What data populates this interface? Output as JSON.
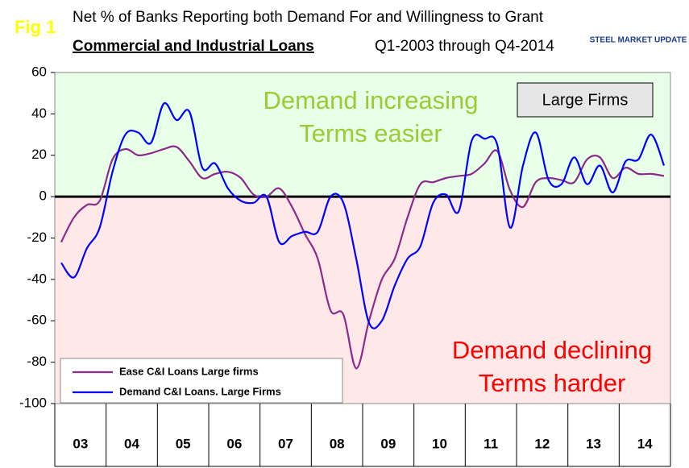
{
  "chart_data": {
    "type": "line",
    "fig_label": "Fig 1",
    "title": "Net % of Banks Reporting both Demand For and Willingness to Grant",
    "subtitle_bold": "Commercial and Industrial Loans",
    "subtitle": "Q1-2003 through Q4-2014",
    "logo": "STEEL MARKET UPDATE",
    "box_label": "Large Firms",
    "annotations_upper": [
      "Demand increasing",
      "Terms easier"
    ],
    "annotations_lower": [
      "Demand declining",
      "Terms harder"
    ],
    "categories": [
      null,
      "03",
      null,
      null,
      null,
      "04",
      null,
      null,
      null,
      "05",
      null,
      null,
      null,
      "06",
      null,
      null,
      null,
      "07",
      null,
      null,
      null,
      "08",
      null,
      null,
      null,
      "09",
      null,
      null,
      null,
      "10",
      null,
      null,
      null,
      "11",
      null,
      null,
      null,
      "12",
      null,
      null,
      null,
      "13",
      null,
      null,
      null,
      "14",
      null,
      null
    ],
    "series": [
      {
        "name": "Ease C&I Loans Large firms",
        "color": "#8b2a8b",
        "values": [
          -22,
          -10,
          -4,
          -2,
          18,
          23,
          20,
          21,
          23,
          24,
          17,
          9,
          11,
          12,
          9,
          1,
          0,
          4,
          -5,
          -18,
          -30,
          -55,
          -57,
          -83,
          -60,
          -40,
          -30,
          -10,
          6,
          7,
          9,
          10,
          11,
          16,
          22,
          3,
          -5,
          7,
          9,
          8,
          7,
          18,
          19,
          9,
          14,
          11,
          11,
          10
        ]
      },
      {
        "name": "Demand C&I Loans. Large Firms",
        "color": "#0000ff",
        "values": [
          -32,
          -39,
          -25,
          -15,
          12,
          30,
          31,
          26,
          45,
          37,
          41,
          14,
          16,
          4,
          -2,
          -3,
          0,
          -22,
          -19,
          -17,
          -17,
          0,
          -3,
          -30,
          -61,
          -60,
          -43,
          -30,
          -24,
          -3,
          1,
          -7,
          27,
          28,
          25,
          -15,
          15,
          31,
          8,
          6,
          19,
          6,
          15,
          2,
          17,
          18,
          30,
          15
        ]
      }
    ],
    "ylim": [
      -100,
      60
    ],
    "yticks": [
      -100,
      -80,
      -60,
      -40,
      -20,
      0,
      20,
      40,
      60
    ],
    "grid": false,
    "upper_color": "#e8ffe8",
    "lower_color": "#ffe8e8",
    "upper_text_color": "#99cc33",
    "lower_text_color": "#ff0000"
  }
}
